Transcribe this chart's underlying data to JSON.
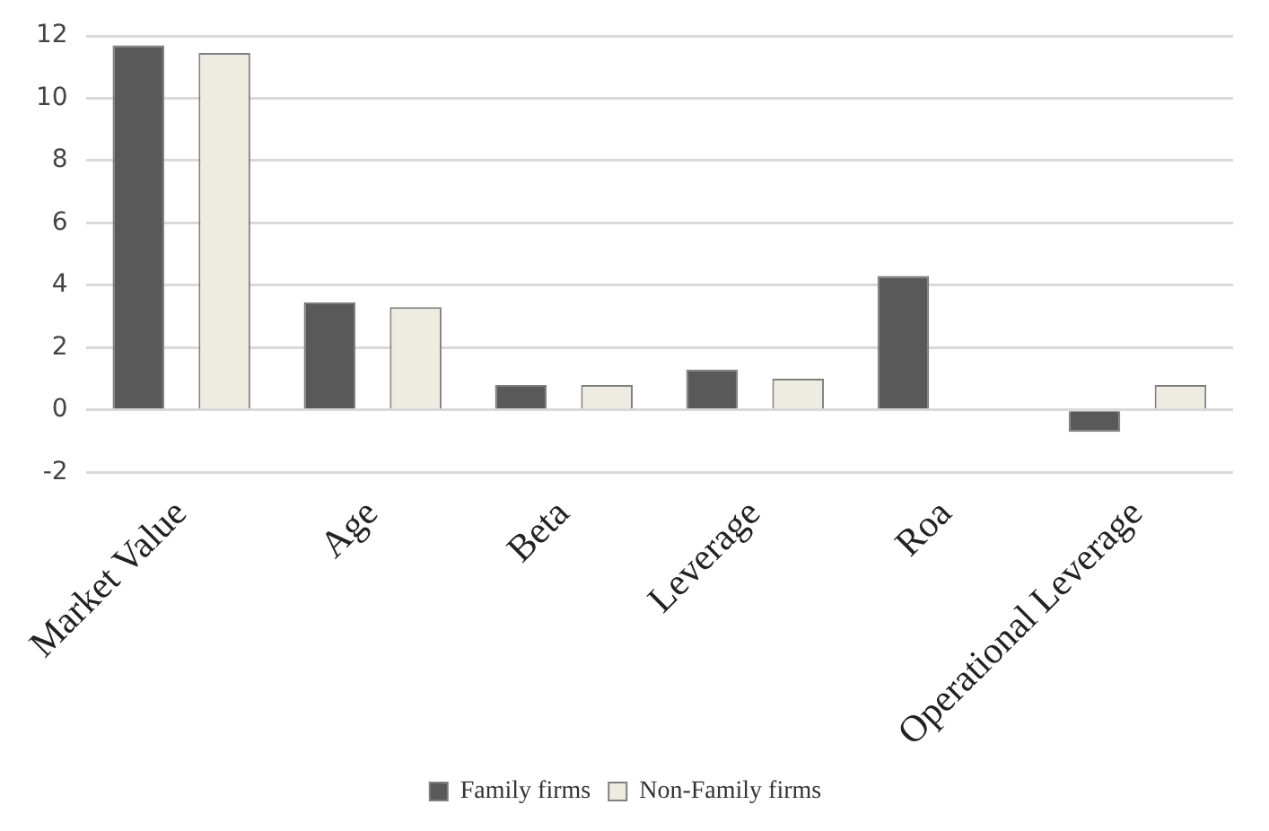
{
  "chart_data": {
    "type": "bar",
    "categories": [
      "Market Value",
      "Age",
      "Beta",
      "Leverage",
      "Roa",
      "Operational Leverage"
    ],
    "series": [
      {
        "name": "Family firms",
        "color": "#595959",
        "values": [
          11.7,
          3.45,
          0.8,
          1.3,
          4.3,
          -0.7
        ]
      },
      {
        "name": "Non-Family firms",
        "color": "#eeece1",
        "values": [
          11.45,
          3.3,
          0.8,
          1.0,
          0,
          0.8
        ]
      }
    ],
    "ylim": [
      -2,
      12
    ],
    "yticks": [
      -2,
      0,
      2,
      4,
      6,
      8,
      10,
      12
    ],
    "grid": "y",
    "legend": "bottom"
  }
}
